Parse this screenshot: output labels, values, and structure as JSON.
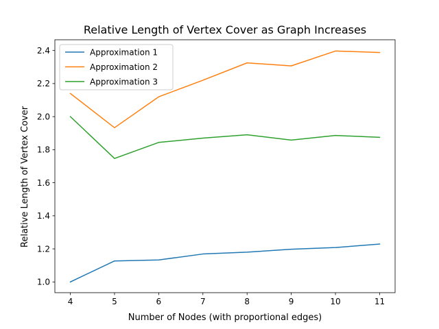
{
  "chart_data": {
    "type": "line",
    "title": "Relative Length of Vertex Cover as Graph Increases",
    "xlabel": "Number of Nodes (with proportional edges)",
    "ylabel": "Relative Length of Vertex Cover",
    "x": [
      4,
      5,
      6,
      7,
      8,
      9,
      10,
      11
    ],
    "xlim": [
      3.65,
      11.35
    ],
    "ylim": [
      0.935,
      2.465
    ],
    "xticks": [
      "4",
      "5",
      "6",
      "7",
      "8",
      "9",
      "10",
      "11"
    ],
    "yticks": [
      "1.0",
      "1.2",
      "1.4",
      "1.6",
      "1.8",
      "2.0",
      "2.2",
      "2.4"
    ],
    "ytick_values": [
      1.0,
      1.2,
      1.4,
      1.6,
      1.8,
      2.0,
      2.2,
      2.4
    ],
    "grid": false,
    "legend_position": "top-left",
    "series": [
      {
        "name": "Approximation 1",
        "color": "#1f77b4",
        "values": [
          1.0,
          1.127,
          1.133,
          1.169,
          1.18,
          1.198,
          1.208,
          1.229
        ]
      },
      {
        "name": "Approximation 2",
        "color": "#ff7f0e",
        "values": [
          2.14,
          1.933,
          2.12,
          2.22,
          2.325,
          2.307,
          2.397,
          2.388
        ]
      },
      {
        "name": "Approximation 3",
        "color": "#2ca02c",
        "values": [
          2.0,
          1.747,
          1.844,
          1.87,
          1.89,
          1.858,
          1.886,
          1.875
        ]
      }
    ]
  }
}
